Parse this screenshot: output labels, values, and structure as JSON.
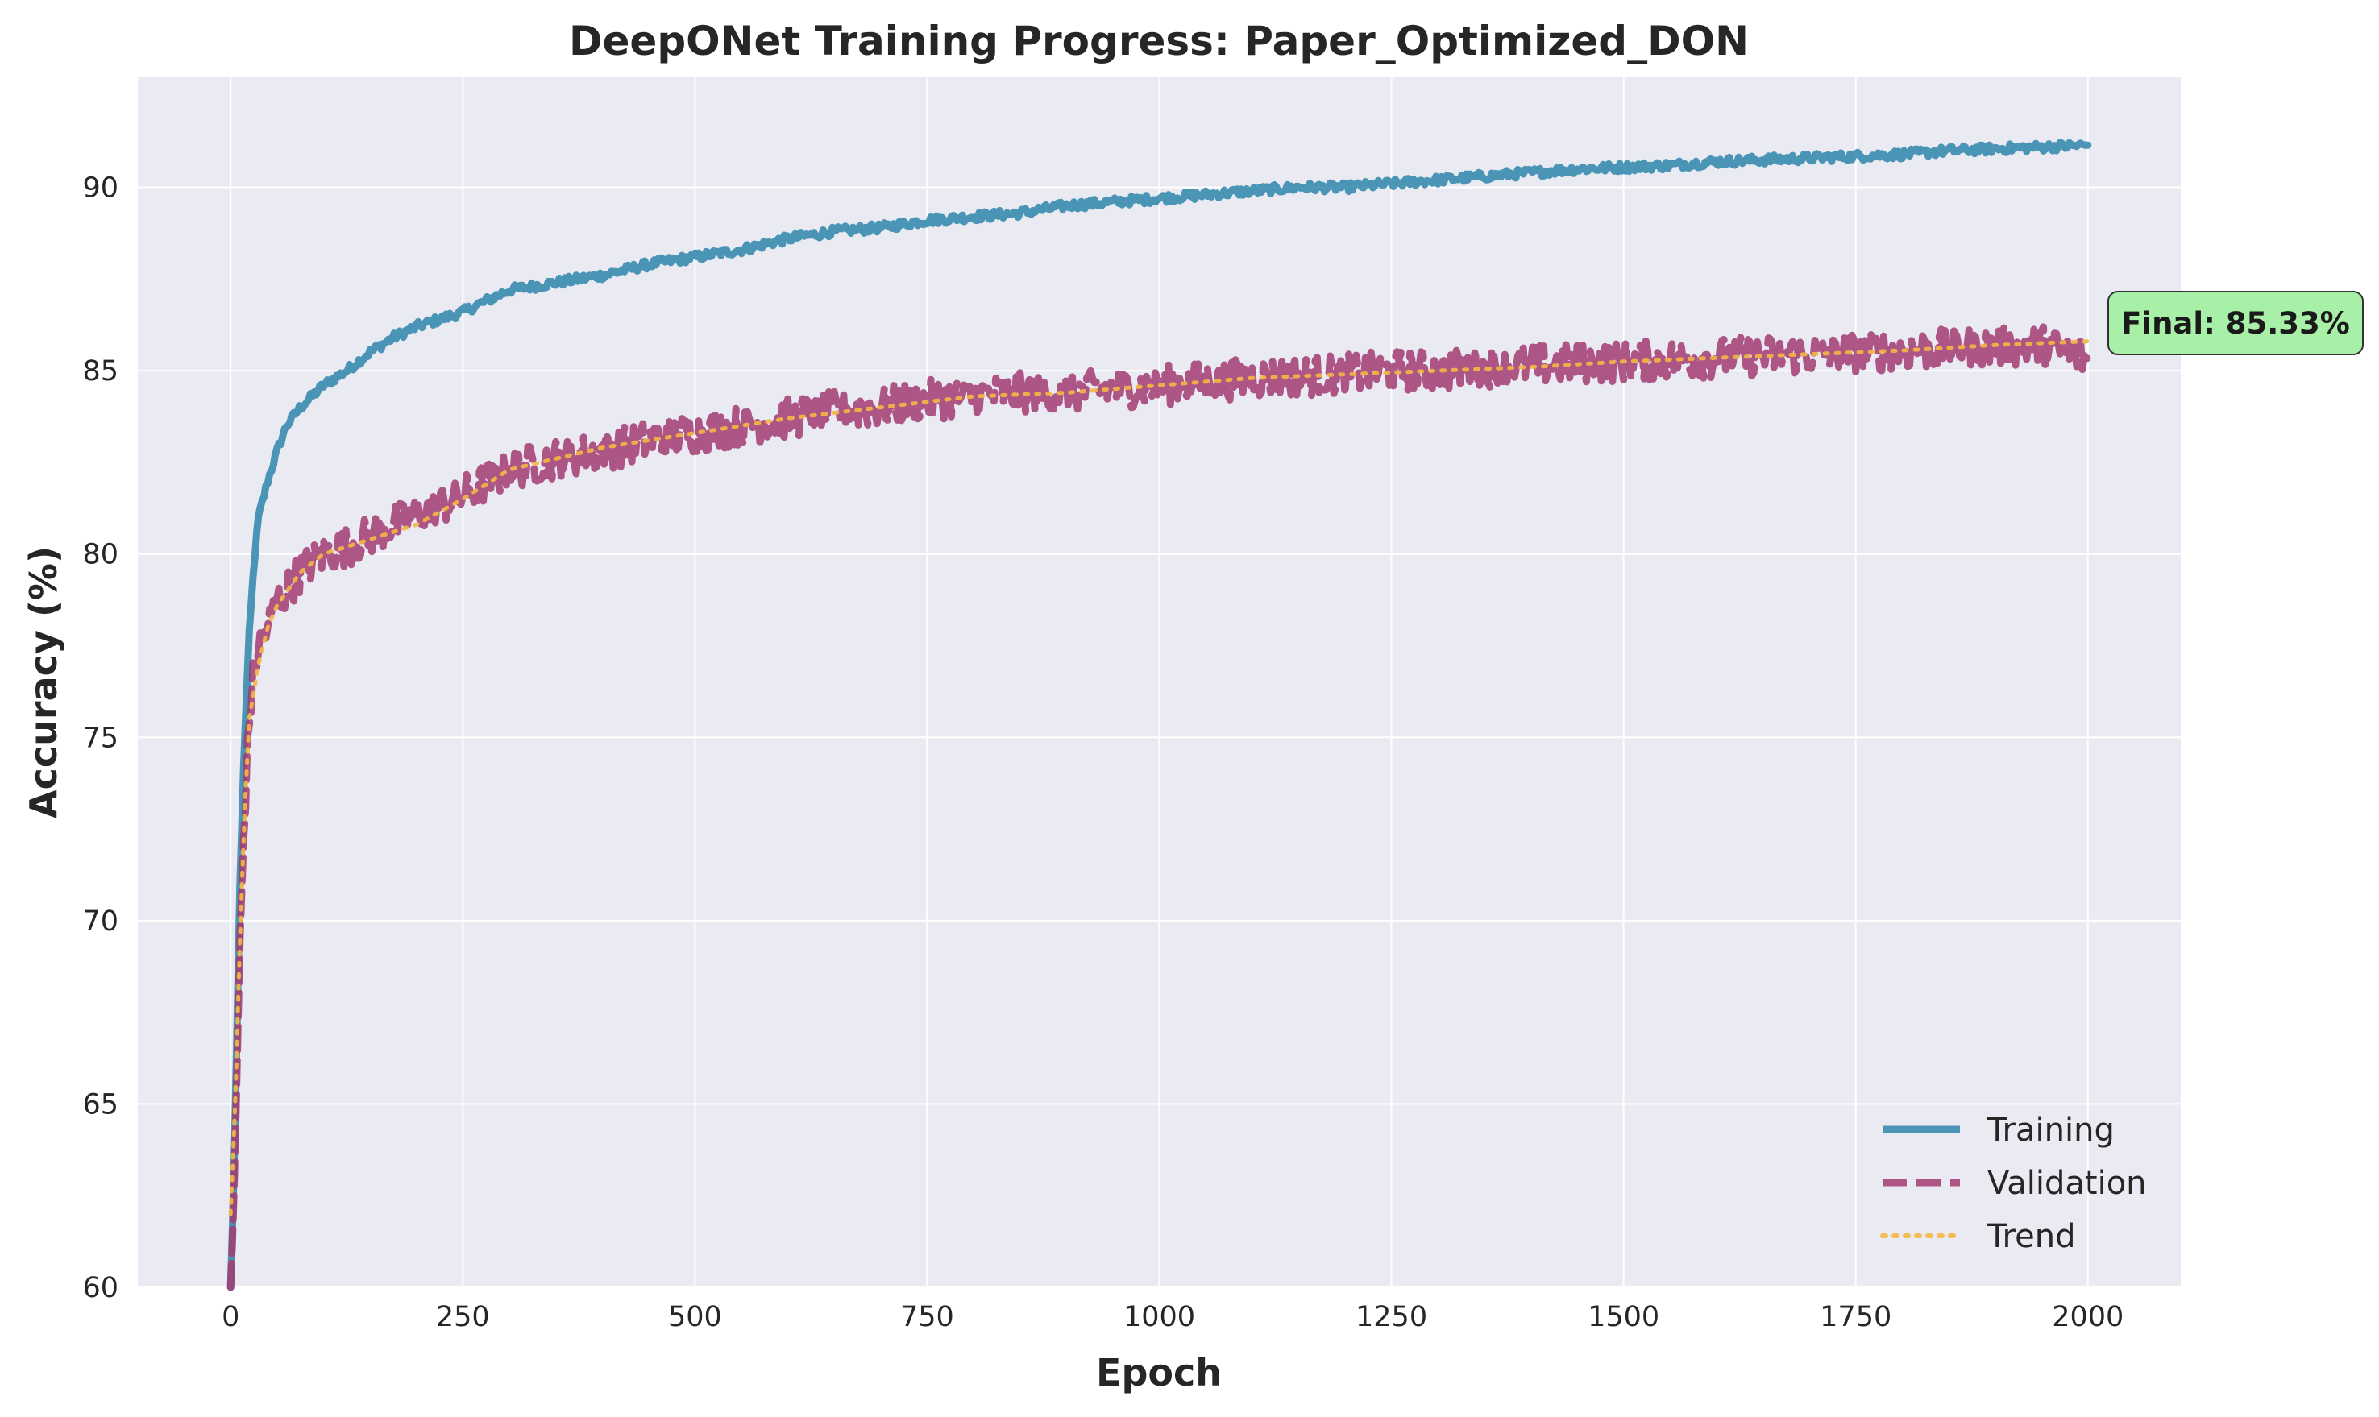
{
  "chart_data": {
    "type": "line",
    "title": "DeepONet Training Progress: Paper_Optimized_DON",
    "xlabel": "Epoch",
    "ylabel": "Accuracy (%)",
    "xlim": [
      -100,
      2100
    ],
    "ylim": [
      60,
      93
    ],
    "xticks": [
      0,
      250,
      500,
      750,
      1000,
      1250,
      1500,
      1750,
      2000
    ],
    "xtick_labels": [
      "0",
      "250",
      "500",
      "750",
      "1000",
      "1250",
      "1500",
      "1750",
      "2000"
    ],
    "yticks": [
      60,
      65,
      70,
      75,
      80,
      85,
      90
    ],
    "ytick_labels": [
      "60",
      "65",
      "70",
      "75",
      "80",
      "85",
      "90"
    ],
    "grid": true,
    "legend_position": "lower-right",
    "series": [
      {
        "name": "Training",
        "style": "solid",
        "color": "#2E86AB",
        "x": [
          0,
          3,
          6,
          10,
          15,
          20,
          25,
          30,
          40,
          50,
          60,
          75,
          100,
          125,
          150,
          175,
          200,
          250,
          300,
          350,
          400,
          450,
          500,
          550,
          600,
          650,
          700,
          750,
          800,
          850,
          900,
          950,
          1000,
          1050,
          1100,
          1150,
          1200,
          1250,
          1300,
          1350,
          1400,
          1450,
          1500,
          1550,
          1600,
          1650,
          1700,
          1750,
          1800,
          1850,
          1900,
          1950,
          2000
        ],
        "y": [
          60.0,
          62.5,
          66.0,
          71.0,
          75.0,
          77.8,
          79.7,
          81.0,
          82.0,
          82.8,
          83.5,
          84.0,
          84.6,
          85.0,
          85.5,
          85.9,
          86.2,
          86.6,
          87.2,
          87.4,
          87.6,
          87.9,
          88.1,
          88.3,
          88.6,
          88.8,
          88.9,
          89.1,
          89.2,
          89.3,
          89.5,
          89.6,
          89.7,
          89.8,
          89.9,
          90.0,
          90.0,
          90.1,
          90.2,
          90.3,
          90.4,
          90.5,
          90.55,
          90.6,
          90.7,
          90.75,
          90.8,
          90.85,
          90.9,
          91.0,
          91.05,
          91.1,
          91.15
        ]
      },
      {
        "name": "Validation",
        "style": "dashed",
        "color": "#A23B72",
        "x": [
          0,
          3,
          6,
          10,
          15,
          20,
          25,
          30,
          40,
          50,
          60,
          75,
          100,
          125,
          150,
          175,
          200,
          250,
          300,
          350,
          400,
          450,
          500,
          550,
          600,
          650,
          700,
          750,
          800,
          850,
          900,
          950,
          1000,
          1050,
          1100,
          1150,
          1200,
          1250,
          1300,
          1350,
          1400,
          1450,
          1500,
          1550,
          1600,
          1650,
          1700,
          1750,
          1800,
          1850,
          1900,
          1950,
          2000
        ],
        "y": [
          60.0,
          62.0,
          65.0,
          69.5,
          73.0,
          75.5,
          76.8,
          77.5,
          78.0,
          78.7,
          79.0,
          79.5,
          80.0,
          80.2,
          80.5,
          80.8,
          81.0,
          81.6,
          82.3,
          82.6,
          82.8,
          83.1,
          83.3,
          83.5,
          83.7,
          83.9,
          84.0,
          84.2,
          84.3,
          84.4,
          84.4,
          84.5,
          84.6,
          84.7,
          84.8,
          84.85,
          84.9,
          85.0,
          85.0,
          85.1,
          85.15,
          85.2,
          85.25,
          85.3,
          85.35,
          85.4,
          85.45,
          85.5,
          85.55,
          85.6,
          85.65,
          85.7,
          85.33
        ]
      },
      {
        "name": "Trend",
        "style": "dotted",
        "color": "#F18F01",
        "x": [
          0,
          5,
          10,
          15,
          20,
          30,
          40,
          50,
          75,
          100,
          150,
          200,
          250,
          300,
          400,
          500,
          600,
          700,
          800,
          900,
          1000,
          1100,
          1200,
          1300,
          1400,
          1500,
          1600,
          1700,
          1800,
          1900,
          2000
        ],
        "y": [
          62.0,
          65.0,
          69.5,
          73.0,
          75.5,
          77.0,
          78.0,
          78.6,
          79.5,
          80.0,
          80.4,
          80.8,
          81.5,
          82.3,
          82.9,
          83.3,
          83.7,
          84.0,
          84.3,
          84.4,
          84.6,
          84.8,
          84.9,
          85.0,
          85.1,
          85.25,
          85.35,
          85.45,
          85.55,
          85.7,
          85.8
        ]
      }
    ],
    "annotation": {
      "text": "Final: 85.33%",
      "x": 2000,
      "y": 85.33,
      "bg_color": "#A8F0A8"
    }
  }
}
